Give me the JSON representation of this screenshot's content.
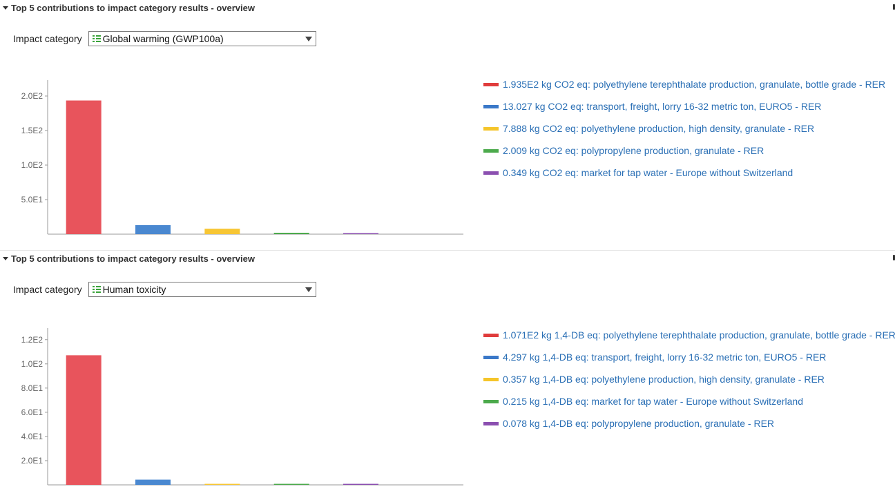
{
  "sections": [
    {
      "header": {
        "title": "Top 5 contributions to impact category results - overview"
      },
      "impact": {
        "label": "Impact category",
        "selected": "Global warming (GWP100a)"
      },
      "chart_data": {
        "type": "bar",
        "categories": [
          "",
          "",
          "",
          "",
          "",
          ""
        ],
        "values": [
          193.5,
          13.027,
          7.888,
          2.009,
          0.349,
          0
        ],
        "ylim": [
          0,
          215
        ],
        "yticks": [
          50,
          100,
          150,
          200
        ],
        "ytick_labels": [
          "5.0E1",
          "1.0E2",
          "1.5E2",
          "2.0E2"
        ],
        "colors": [
          "#e8545c",
          "#4a88d0",
          "#f7c634",
          "#4caa4c",
          "#8b4fb0"
        ],
        "legend": [
          {
            "text": "1.935E2 kg CO2 eq: polyethylene terephthalate production, granulate, bottle grade - RER",
            "color": "#e03c3c"
          },
          {
            "text": "13.027 kg CO2 eq: transport, freight, lorry 16-32 metric ton, EURO5 - RER",
            "color": "#3a78c8"
          },
          {
            "text": "7.888 kg CO2 eq: polyethylene production, high density, granulate - RER",
            "color": "#f5c52a"
          },
          {
            "text": "2.009 kg CO2 eq: polypropylene production, granulate - RER",
            "color": "#4caa4c"
          },
          {
            "text": "0.349 kg CO2 eq: market for tap water - Europe without Switzerland",
            "color": "#8b4fb0"
          }
        ]
      }
    },
    {
      "header": {
        "title": "Top 5 contributions to impact category results - overview"
      },
      "impact": {
        "label": "Impact category",
        "selected": "Human toxicity"
      },
      "chart_data": {
        "type": "bar",
        "categories": [
          "",
          "",
          "",
          "",
          "",
          ""
        ],
        "values": [
          107.1,
          4.297,
          0.357,
          0.215,
          0.078,
          0
        ],
        "ylim": [
          0,
          125
        ],
        "yticks": [
          20,
          40,
          60,
          80,
          100,
          120
        ],
        "ytick_labels": [
          "2.0E1",
          "4.0E1",
          "6.0E1",
          "8.0E1",
          "1.0E2",
          "1.2E2"
        ],
        "colors": [
          "#e8545c",
          "#4a88d0",
          "#f7c634",
          "#4caa4c",
          "#8b4fb0"
        ],
        "legend": [
          {
            "text": "1.071E2 kg 1,4-DB eq: polyethylene terephthalate production, granulate, bottle grade - RER",
            "color": "#e03c3c"
          },
          {
            "text": "4.297 kg 1,4-DB eq: transport, freight, lorry 16-32 metric ton, EURO5 - RER",
            "color": "#3a78c8"
          },
          {
            "text": "0.357 kg 1,4-DB eq: polyethylene production, high density, granulate - RER",
            "color": "#f5c52a"
          },
          {
            "text": "0.215 kg 1,4-DB eq: market for tap water - Europe without Switzerland",
            "color": "#4caa4c"
          },
          {
            "text": "0.078 kg 1,4-DB eq: polypropylene production, granulate - RER",
            "color": "#8b4fb0"
          }
        ]
      }
    }
  ]
}
